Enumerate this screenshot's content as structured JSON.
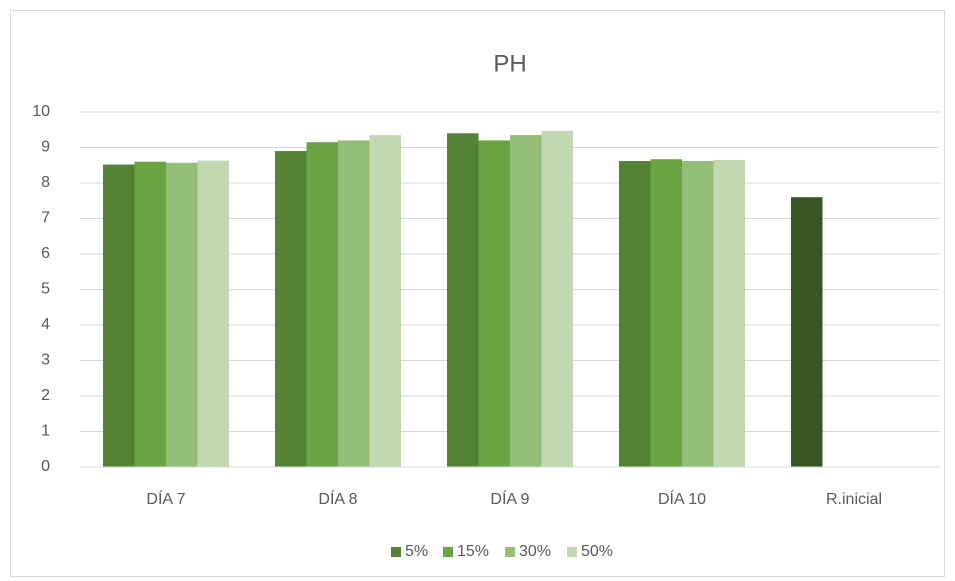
{
  "chart_data": {
    "type": "bar",
    "title": "PH",
    "categories": [
      "DÍA 7",
      "DÍA 8",
      "DÍA 9",
      "DÍA 10",
      "R.inicial"
    ],
    "series": [
      {
        "name": "5%",
        "color": "#548235",
        "colors": [
          "#548235",
          "#548235",
          "#548235",
          "#548235",
          "#375623"
        ],
        "values": [
          8.52,
          8.9,
          9.4,
          8.62,
          7.6
        ]
      },
      {
        "name": "15%",
        "color": "#6aa443",
        "values": [
          8.6,
          9.15,
          9.2,
          8.67,
          null
        ]
      },
      {
        "name": "30%",
        "color": "#94bd78",
        "values": [
          8.57,
          9.2,
          9.35,
          8.62,
          null
        ]
      },
      {
        "name": "50%",
        "color": "#c1d9b1",
        "values": [
          8.63,
          9.35,
          9.47,
          8.65,
          null
        ]
      }
    ],
    "ylim": [
      0,
      10
    ],
    "yticks": [
      0,
      1,
      2,
      3,
      4,
      5,
      6,
      7,
      8,
      9,
      10
    ],
    "grid": true,
    "legend": "bottom"
  }
}
